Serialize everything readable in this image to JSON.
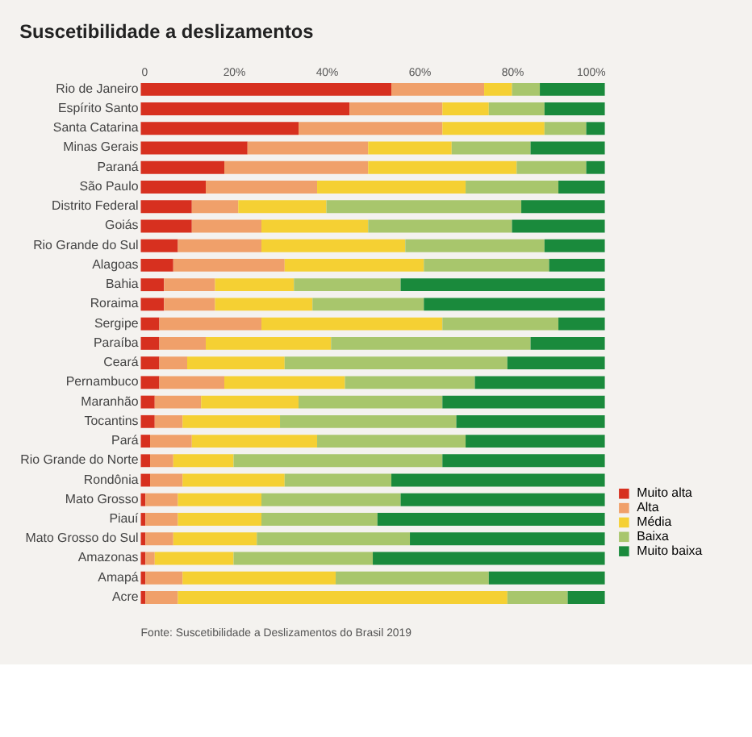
{
  "chart_data": {
    "type": "bar",
    "orientation": "horizontal",
    "stacked": true,
    "title": "Suscetibilidade a deslizamentos",
    "categories": [
      "Rio de Janeiro",
      "Espírito Santo",
      "Santa Catarina",
      "Minas Gerais",
      "Paraná",
      "São Paulo",
      "Distrito Federal",
      "Goiás",
      "Rio Grande do Sul",
      "Alagoas",
      "Bahia",
      "Roraima",
      "Sergipe",
      "Paraíba",
      "Ceará",
      "Pernambuco",
      "Maranhão",
      "Tocantins",
      "Pará",
      "Rio Grande do Norte",
      "Rondônia",
      "Mato Grosso",
      "Piauí",
      "Mato Grosso do Sul",
      "Amazonas",
      "Amapá",
      "Acre"
    ],
    "series": [
      {
        "name": "Muito alta",
        "color": "#d7301f",
        "values": [
          54,
          45,
          34,
          23,
          18,
          14,
          11,
          11,
          8,
          7,
          5,
          5,
          4,
          4,
          4,
          4,
          3,
          3,
          2,
          2,
          2,
          1,
          1,
          1,
          1,
          1,
          1
        ]
      },
      {
        "name": "Alta",
        "color": "#f0a06a",
        "values": [
          20,
          20,
          31,
          26,
          31,
          24,
          10,
          15,
          18,
          24,
          11,
          11,
          22,
          10,
          6,
          14,
          10,
          6,
          9,
          5,
          7,
          7,
          7,
          6,
          2,
          8,
          7
        ]
      },
      {
        "name": "Média",
        "color": "#f5d033",
        "values": [
          6,
          10,
          22,
          18,
          32,
          32,
          19,
          23,
          31,
          30,
          17,
          21,
          39,
          27,
          21,
          26,
          21,
          21,
          27,
          13,
          22,
          18,
          18,
          18,
          17,
          33,
          71
        ]
      },
      {
        "name": "Baixa",
        "color": "#a8c66c",
        "values": [
          6,
          12,
          9,
          17,
          15,
          20,
          42,
          31,
          30,
          27,
          23,
          24,
          25,
          43,
          48,
          28,
          31,
          38,
          32,
          45,
          23,
          30,
          25,
          33,
          30,
          33,
          13
        ]
      },
      {
        "name": "Muito baixa",
        "color": "#1a8a3c",
        "values": [
          14,
          13,
          4,
          16,
          4,
          10,
          18,
          20,
          13,
          12,
          44,
          39,
          10,
          16,
          21,
          28,
          35,
          32,
          30,
          35,
          46,
          44,
          49,
          42,
          50,
          25,
          8
        ]
      }
    ],
    "xlim": [
      0,
      100
    ],
    "xticks": [
      0,
      {
        "value": 20,
        "label": "20%"
      },
      {
        "value": 40,
        "label": "40%"
      },
      {
        "value": 60,
        "label": "60%"
      },
      {
        "value": 80,
        "label": "80%"
      },
      {
        "value": 100,
        "label": "100%"
      }
    ],
    "grid": false,
    "legend": "bottom right",
    "annotations": [
      "Fonte: Suscetibilidade a Deslizamentos do Brasil 2019"
    ]
  }
}
